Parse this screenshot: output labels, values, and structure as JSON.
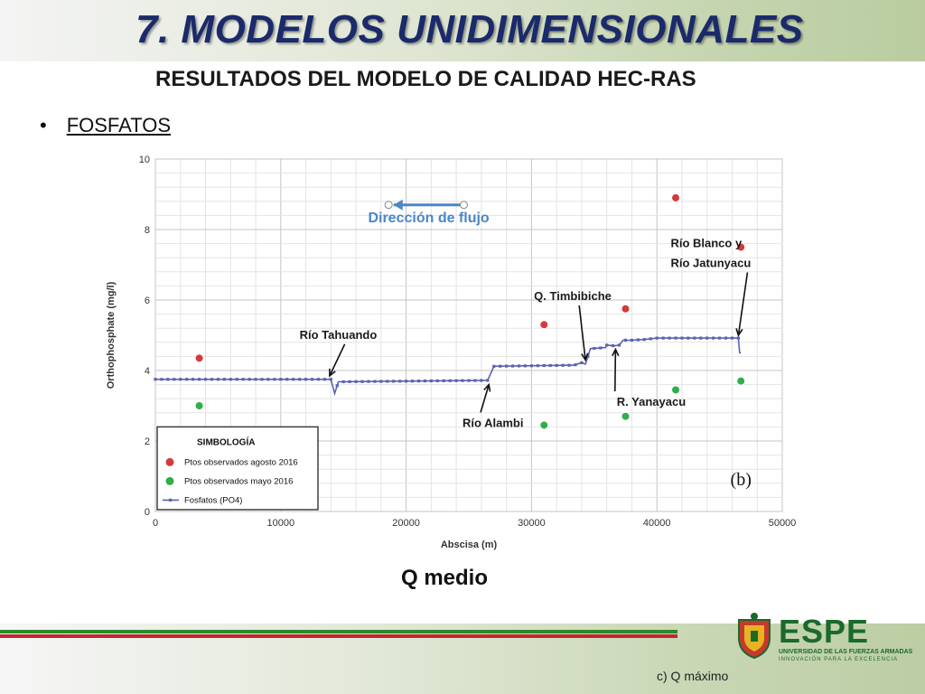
{
  "slide": {
    "title": "7. MODELOS UNIDIMENSIONALES",
    "subtitle": "RESULTADOS DEL MODELO DE CALIDAD HEC-RAS",
    "bullet_symbol": "•",
    "bullet": "FOSFATOS",
    "caption": "Q medio",
    "footnote": "c) Q máximo",
    "logo": {
      "name": "ESPE",
      "line1": "UNIVERSIDAD DE LAS FUERZAS ARMADAS",
      "line2": "INNOVACIÓN PARA LA EXCELENCIA"
    }
  },
  "colors": {
    "title": "#1b2a6b",
    "series": "#5a63b0",
    "agosto": "#d43a3a",
    "mayo": "#2fae4a",
    "flow_label": "#4a86c8",
    "stripe_green": "#2a8a2a",
    "stripe_red": "#c0272d"
  },
  "chart_data": {
    "type": "line",
    "xlabel": "Abscisa (m)",
    "ylabel": "Orthophosphate (mg/l)",
    "xlim": [
      0,
      50000
    ],
    "ylim": [
      0,
      10
    ],
    "xticks": [
      0,
      10000,
      20000,
      30000,
      40000,
      50000
    ],
    "yticks": [
      0,
      2,
      4,
      6,
      8,
      10
    ],
    "grid": true,
    "panel_label": "(b)",
    "flow_direction_label": "Dirección de flujo",
    "series": [
      {
        "name": "Fosfatos (PO4)",
        "kind": "line",
        "x": [
          0,
          13900,
          14000,
          14300,
          14600,
          26500,
          27000,
          33400,
          34000,
          34300,
          34700,
          35900,
          36000,
          36600,
          37000,
          37300,
          38000,
          39000,
          40000,
          46500,
          46600,
          46700
        ],
        "y": [
          3.75,
          3.75,
          3.75,
          3.35,
          3.68,
          3.72,
          4.12,
          4.15,
          4.22,
          4.18,
          4.62,
          4.65,
          4.72,
          4.7,
          4.72,
          4.86,
          4.86,
          4.88,
          4.92,
          4.92,
          4.5,
          4.5
        ]
      },
      {
        "name": "Ptos observados agosto 2016",
        "kind": "scatter",
        "x": [
          3500,
          31000,
          37500,
          41500,
          46700
        ],
        "y": [
          4.35,
          5.3,
          5.75,
          8.9,
          7.5
        ]
      },
      {
        "name": "Ptos observados mayo 2016",
        "kind": "scatter",
        "x": [
          3500,
          31000,
          37500,
          41500,
          46700
        ],
        "y": [
          3.0,
          2.45,
          2.7,
          3.45,
          3.7
        ]
      }
    ],
    "legend": {
      "title": "SIMBOLOGÍA",
      "position": "bottom-left",
      "items": [
        "Ptos observados agosto 2016",
        "Ptos observados mayo 2016",
        "Fosfatos (PO4)"
      ]
    },
    "annotations": [
      {
        "lines": [
          "Río Tahuando"
        ],
        "x": 14000,
        "y": 3.8
      },
      {
        "lines": [
          "Río Alambi"
        ],
        "x": 26500,
        "y": 3.6
      },
      {
        "lines": [
          "Q.  Timbibiche"
        ],
        "x": 34300,
        "y": 4.25
      },
      {
        "lines": [
          "R.  Yanayacu"
        ],
        "x": 36600,
        "y": 4.6
      },
      {
        "lines": [
          "Río Blanco y",
          "Río Jatunyacu"
        ],
        "x": 46500,
        "y": 5.0
      }
    ]
  }
}
